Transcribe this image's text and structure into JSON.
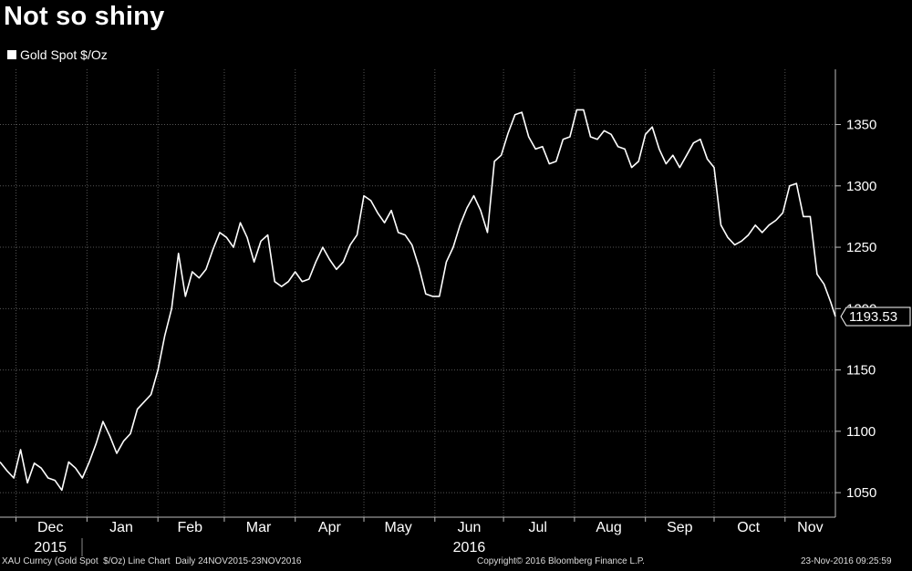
{
  "title": "Not so shiny",
  "legend": {
    "label": "Gold Spot $/Oz",
    "color": "#ffffff"
  },
  "last_value_label": "1193.53",
  "footer": {
    "left": "XAU Curncy (Gold Spot  $/Oz) Line Chart  Daily 24NOV2015-23NOV2016",
    "center": "Copyright© 2016 Bloomberg Finance L.P.",
    "right": "23-Nov-2016 09:25:59"
  },
  "chart_data": {
    "type": "line",
    "title": "Not so shiny",
    "yticks": [
      1050,
      1100,
      1150,
      1200,
      1250,
      1300,
      1350
    ],
    "ylim": [
      1030,
      1395
    ],
    "xlim": [
      "2015-11-24",
      "2016-11-23"
    ],
    "months": [
      {
        "label": "Dec",
        "sub": "2015",
        "center": "2015-12-16",
        "start": "2015-12-01"
      },
      {
        "label": "Jan",
        "sub": "",
        "center": "2016-01-16",
        "start": "2016-01-01"
      },
      {
        "label": "Feb",
        "sub": "",
        "center": "2016-02-15",
        "start": "2016-02-01"
      },
      {
        "label": "Mar",
        "sub": "",
        "center": "2016-03-16",
        "start": "2016-03-01"
      },
      {
        "label": "Apr",
        "sub": "",
        "center": "2016-04-16",
        "start": "2016-04-01"
      },
      {
        "label": "May",
        "sub": "",
        "center": "2016-05-16",
        "start": "2016-05-01"
      },
      {
        "label": "Jun",
        "sub": "2016",
        "center": "2016-06-16",
        "start": "2016-06-01"
      },
      {
        "label": "Jul",
        "sub": "",
        "center": "2016-07-16",
        "start": "2016-07-01"
      },
      {
        "label": "Aug",
        "sub": "",
        "center": "2016-08-16",
        "start": "2016-08-01"
      },
      {
        "label": "Sep",
        "sub": "",
        "center": "2016-09-16",
        "start": "2016-09-01"
      },
      {
        "label": "Oct",
        "sub": "",
        "center": "2016-10-16",
        "start": "2016-10-01"
      },
      {
        "label": "Nov",
        "sub": "",
        "center": "2016-11-12",
        "start": "2016-11-01"
      }
    ],
    "series": [
      {
        "color": "#ffffff",
        "x": [
          "2015-11-24",
          "2015-11-27",
          "2015-11-30",
          "2015-12-03",
          "2015-12-06",
          "2015-12-09",
          "2015-12-12",
          "2015-12-15",
          "2015-12-18",
          "2015-12-21",
          "2015-12-24",
          "2015-12-27",
          "2015-12-30",
          "2016-01-02",
          "2016-01-05",
          "2016-01-08",
          "2016-01-11",
          "2016-01-14",
          "2016-01-17",
          "2016-01-20",
          "2016-01-23",
          "2016-01-26",
          "2016-01-29",
          "2016-02-01",
          "2016-02-04",
          "2016-02-07",
          "2016-02-10",
          "2016-02-13",
          "2016-02-16",
          "2016-02-19",
          "2016-02-22",
          "2016-02-25",
          "2016-02-28",
          "2016-03-02",
          "2016-03-05",
          "2016-03-08",
          "2016-03-11",
          "2016-03-14",
          "2016-03-17",
          "2016-03-20",
          "2016-03-23",
          "2016-03-26",
          "2016-03-29",
          "2016-04-01",
          "2016-04-04",
          "2016-04-07",
          "2016-04-10",
          "2016-04-13",
          "2016-04-16",
          "2016-04-19",
          "2016-04-22",
          "2016-04-25",
          "2016-04-28",
          "2016-05-01",
          "2016-05-04",
          "2016-05-07",
          "2016-05-10",
          "2016-05-13",
          "2016-05-16",
          "2016-05-19",
          "2016-05-22",
          "2016-05-25",
          "2016-05-28",
          "2016-05-31",
          "2016-06-03",
          "2016-06-06",
          "2016-06-09",
          "2016-06-12",
          "2016-06-15",
          "2016-06-18",
          "2016-06-21",
          "2016-06-24",
          "2016-06-27",
          "2016-06-30",
          "2016-07-03",
          "2016-07-06",
          "2016-07-09",
          "2016-07-12",
          "2016-07-15",
          "2016-07-18",
          "2016-07-21",
          "2016-07-24",
          "2016-07-27",
          "2016-07-30",
          "2016-08-02",
          "2016-08-05",
          "2016-08-08",
          "2016-08-11",
          "2016-08-14",
          "2016-08-17",
          "2016-08-20",
          "2016-08-23",
          "2016-08-26",
          "2016-08-29",
          "2016-09-01",
          "2016-09-04",
          "2016-09-07",
          "2016-09-10",
          "2016-09-13",
          "2016-09-16",
          "2016-09-19",
          "2016-09-22",
          "2016-09-25",
          "2016-09-28",
          "2016-10-01",
          "2016-10-04",
          "2016-10-07",
          "2016-10-10",
          "2016-10-13",
          "2016-10-16",
          "2016-10-19",
          "2016-10-22",
          "2016-10-25",
          "2016-10-28",
          "2016-10-31",
          "2016-11-03",
          "2016-11-06",
          "2016-11-09",
          "2016-11-12",
          "2016-11-15",
          "2016-11-18",
          "2016-11-21",
          "2016-11-23"
        ],
        "y": [
          1075,
          1068,
          1062,
          1085,
          1058,
          1074,
          1070,
          1062,
          1060,
          1052,
          1075,
          1070,
          1062,
          1075,
          1090,
          1108,
          1096,
          1082,
          1092,
          1098,
          1118,
          1124,
          1130,
          1150,
          1178,
          1200,
          1245,
          1210,
          1230,
          1225,
          1232,
          1248,
          1262,
          1258,
          1250,
          1270,
          1258,
          1238,
          1255,
          1260,
          1222,
          1218,
          1222,
          1230,
          1222,
          1224,
          1238,
          1250,
          1240,
          1232,
          1238,
          1252,
          1260,
          1292,
          1288,
          1278,
          1270,
          1280,
          1262,
          1260,
          1252,
          1234,
          1212,
          1210,
          1210,
          1238,
          1250,
          1268,
          1282,
          1292,
          1280,
          1262,
          1320,
          1325,
          1343,
          1358,
          1360,
          1340,
          1330,
          1332,
          1318,
          1320,
          1338,
          1340,
          1362,
          1362,
          1340,
          1338,
          1345,
          1342,
          1332,
          1330,
          1315,
          1320,
          1342,
          1348,
          1330,
          1318,
          1325,
          1315,
          1325,
          1335,
          1338,
          1322,
          1315,
          1268,
          1258,
          1252,
          1255,
          1260,
          1268,
          1262,
          1268,
          1272,
          1278,
          1300,
          1302,
          1275,
          1275,
          1228,
          1220,
          1205,
          1193.53
        ]
      }
    ]
  }
}
